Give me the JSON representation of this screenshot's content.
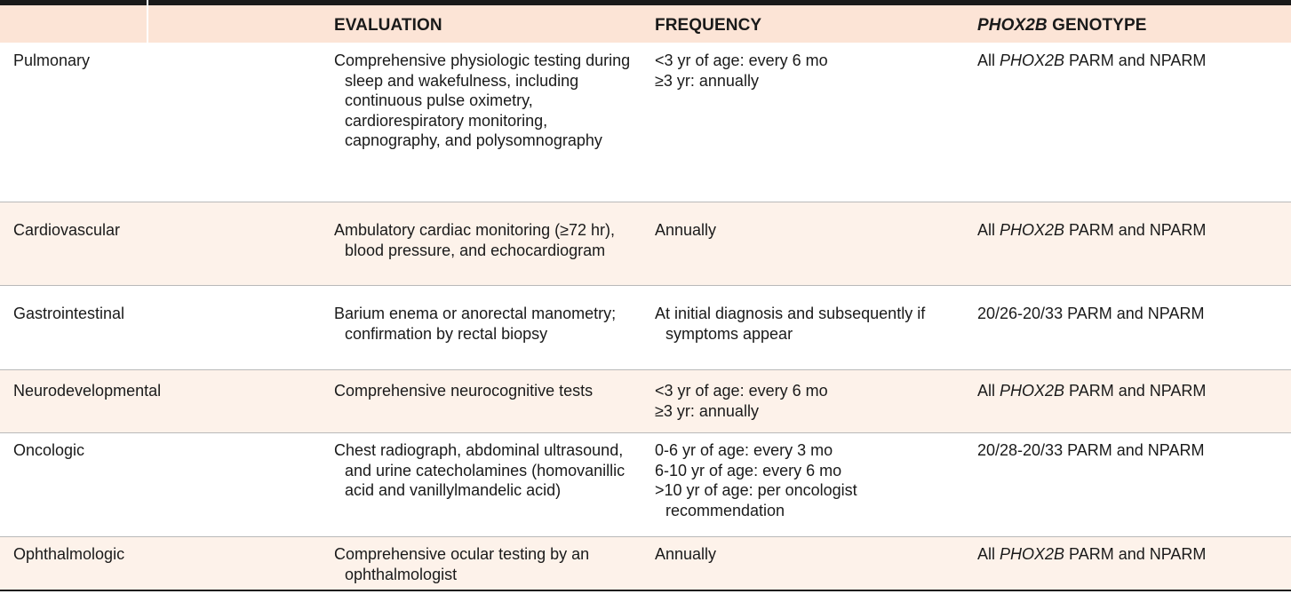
{
  "table": {
    "headers": {
      "evaluation": "EVALUATION",
      "frequency": "FREQUENCY",
      "genotype_italic": "PHOX2B",
      "genotype_rest": " GENOTYPE"
    },
    "rows": [
      {
        "area": "Pulmonary",
        "evaluation": "Comprehensive physiologic testing during sleep and wakefulness, including continuous pulse oximetry, cardiorespiratory monitoring, capnography, and polysomnography",
        "frequency": [
          "<3 yr of age: every 6 mo",
          "≥3 yr: annually"
        ],
        "genotype_prefix": "All ",
        "genotype_italic": "PHOX2B",
        "genotype_suffix": " PARM and NPARM"
      },
      {
        "area": "Cardiovascular",
        "evaluation": "Ambulatory cardiac monitoring (≥72 hr), blood pressure, and echocardiogram",
        "frequency": [
          "Annually"
        ],
        "genotype_prefix": "All ",
        "genotype_italic": "PHOX2B",
        "genotype_suffix": " PARM and NPARM"
      },
      {
        "area": "Gastrointestinal",
        "evaluation": "Barium enema or anorectal manometry; confirmation by rectal biopsy",
        "frequency": [
          "At initial diagnosis and subsequently if symptoms appear"
        ],
        "genotype_prefix": "20/26-20/33 PARM and NPARM",
        "genotype_italic": "",
        "genotype_suffix": ""
      },
      {
        "area": "Neurodevelopmental",
        "evaluation": "Comprehensive neurocognitive tests",
        "frequency": [
          "<3 yr of age: every 6 mo",
          "≥3 yr: annually"
        ],
        "genotype_prefix": "All ",
        "genotype_italic": "PHOX2B",
        "genotype_suffix": " PARM and NPARM"
      },
      {
        "area": "Oncologic",
        "evaluation": "Chest radiograph, abdominal ultrasound, and urine catecholamines (homovanillic acid and vanillylmandelic acid)",
        "frequency": [
          "0-6 yr of age: every 3 mo",
          "6-10 yr of age: every 6 mo",
          ">10 yr of age: per oncologist recommendation"
        ],
        "genotype_prefix": "20/28-20/33 PARM and NPARM",
        "genotype_italic": "",
        "genotype_suffix": ""
      },
      {
        "area": "Ophthalmologic",
        "evaluation": "Comprehensive ocular testing by an ophthalmologist",
        "frequency": [
          "Annually"
        ],
        "genotype_prefix": "All ",
        "genotype_italic": "PHOX2B",
        "genotype_suffix": " PARM and NPARM"
      }
    ]
  },
  "colors": {
    "header_band": "#fce4d6",
    "shaded_row": "#fdf2ea",
    "rule": "#1a1a1a"
  }
}
